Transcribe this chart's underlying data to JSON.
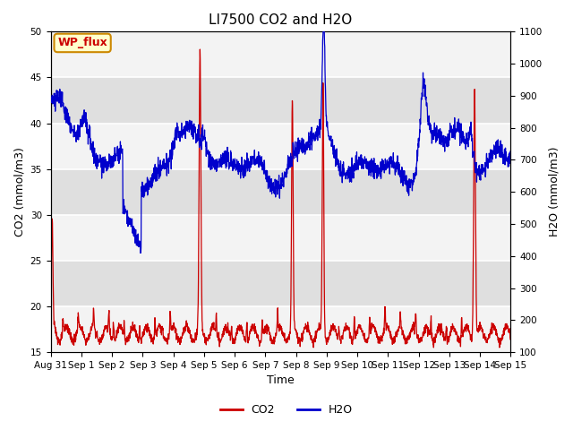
{
  "title": "LI7500 CO2 and H2O",
  "xlabel": "Time",
  "ylabel_left": "CO2 (mmol/m3)",
  "ylabel_right": "H2O (mmol/m3)",
  "xlim_days": [
    0,
    15
  ],
  "ylim_left": [
    15,
    50
  ],
  "ylim_right": [
    100,
    1100
  ],
  "xtick_labels": [
    "Aug 31",
    "Sep 1",
    "Sep 2",
    "Sep 3",
    "Sep 4",
    "Sep 5",
    "Sep 6",
    "Sep 7",
    "Sep 8",
    "Sep 9",
    "Sep 10",
    "Sep 11",
    "Sep 12",
    "Sep 13",
    "Sep 14",
    "Sep 15"
  ],
  "yticks_left": [
    15,
    20,
    25,
    30,
    35,
    40,
    45,
    50
  ],
  "yticks_right": [
    100,
    200,
    300,
    400,
    500,
    600,
    700,
    800,
    900,
    1000,
    1100
  ],
  "plot_bg_color": "#e8e8e8",
  "band_color_light": "#ececec",
  "band_color_dark": "#d8d8d8",
  "grid_color": "white",
  "co2_color": "#cc0000",
  "h2o_color": "#0000cc",
  "annotation_text": "WP_flux",
  "annotation_box_color": "#ffffcc",
  "annotation_box_edge": "#cc8800",
  "legend_co2": "CO2",
  "legend_h2o": "H2O",
  "title_fontsize": 11,
  "axis_label_fontsize": 9,
  "tick_fontsize": 7.5
}
